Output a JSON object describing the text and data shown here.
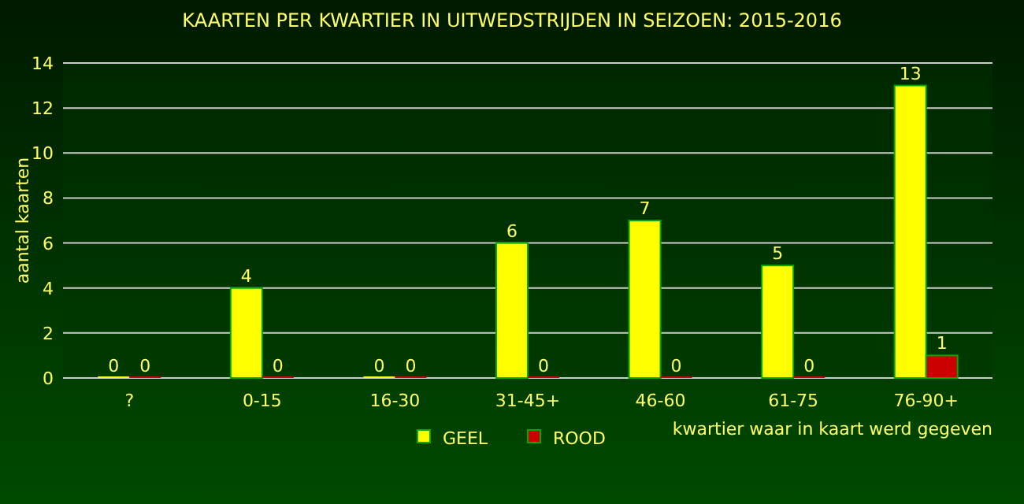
{
  "chart_data": {
    "type": "bar",
    "title": "KAARTEN PER KWARTIER IN UITWEDSTRIJDEN IN SEIZOEN: 2015-2016",
    "xlabel": "kwartier waar in kaart werd gegeven",
    "ylabel": "aantal kaarten",
    "categories": [
      "?",
      "0-15",
      "16-30",
      "31-45+",
      "46-60",
      "61-75",
      "76-90+"
    ],
    "series": [
      {
        "name": "GEEL",
        "color": "#ffff00",
        "values": [
          0,
          4,
          0,
          6,
          7,
          5,
          13
        ]
      },
      {
        "name": "ROOD",
        "color": "#cc0000",
        "values": [
          0,
          0,
          0,
          0,
          0,
          0,
          1
        ]
      }
    ],
    "ylim": [
      0,
      14
    ],
    "yticks": [
      0,
      2,
      4,
      6,
      8,
      10,
      12,
      14
    ],
    "grid": "y",
    "legend": "bottom",
    "data_labels": true
  }
}
